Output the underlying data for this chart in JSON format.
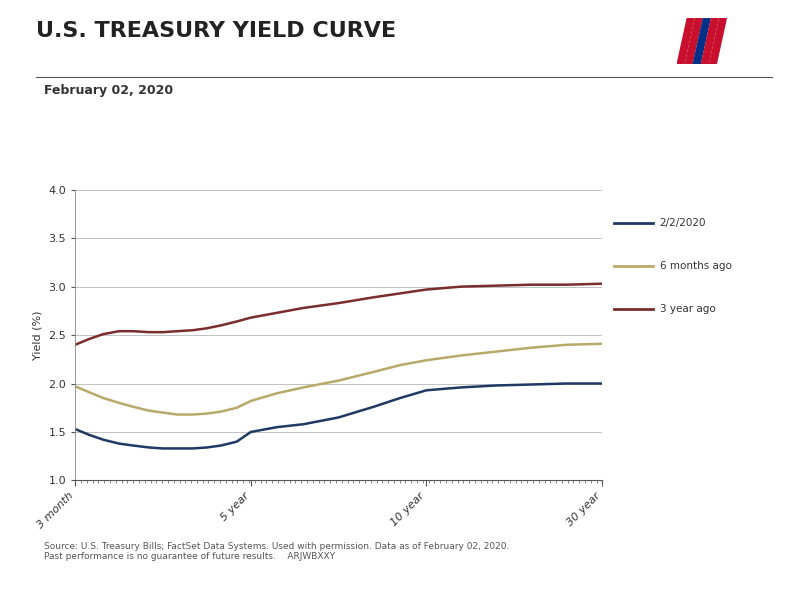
{
  "title": "U.S. TREASURY YIELD CURVE",
  "subtitle": "February 02, 2020",
  "ylabel": "Yield (%)",
  "source_line1": "Source: U.S. Treasury Bills; FactSet Data Systems. Used with permission. Data as of February 02, 2020.",
  "source_line2": "Past performance is no guarantee of future results.    ARJWBXXY",
  "ylim": [
    1.0,
    4.0
  ],
  "yticks": [
    1.0,
    1.5,
    2.0,
    2.5,
    3.0,
    3.5,
    4.0
  ],
  "xtick_labels": [
    "3 month",
    "5 year",
    "10 year",
    "30 year"
  ],
  "xtick_positions": [
    0,
    1.0,
    2.0,
    3.0
  ],
  "series": [
    {
      "label": "2/2/2020",
      "color": "#1f3864",
      "linewidth": 1.8,
      "x": [
        0,
        0.08,
        0.16,
        0.25,
        0.33,
        0.42,
        0.5,
        0.58,
        0.67,
        0.75,
        0.83,
        0.92,
        1.0,
        1.15,
        1.3,
        1.5,
        1.7,
        1.85,
        2.0,
        2.2,
        2.4,
        2.6,
        2.8,
        3.0
      ],
      "y": [
        1.53,
        1.47,
        1.42,
        1.38,
        1.36,
        1.34,
        1.33,
        1.33,
        1.33,
        1.34,
        1.36,
        1.4,
        1.5,
        1.55,
        1.58,
        1.65,
        1.76,
        1.85,
        1.93,
        1.96,
        1.98,
        1.99,
        2.0,
        2.0
      ]
    },
    {
      "label": "6 months ago",
      "color": "#b8a96a",
      "linewidth": 1.8,
      "x": [
        0,
        0.08,
        0.16,
        0.25,
        0.33,
        0.42,
        0.5,
        0.58,
        0.67,
        0.75,
        0.83,
        0.92,
        1.0,
        1.15,
        1.3,
        1.5,
        1.7,
        1.85,
        2.0,
        2.2,
        2.4,
        2.6,
        2.8,
        3.0
      ],
      "y": [
        1.97,
        1.91,
        1.85,
        1.8,
        1.76,
        1.72,
        1.7,
        1.68,
        1.68,
        1.69,
        1.71,
        1.75,
        1.82,
        1.9,
        1.96,
        2.03,
        2.12,
        2.19,
        2.24,
        2.29,
        2.33,
        2.37,
        2.4,
        2.41
      ]
    },
    {
      "label": "3 year ago",
      "color": "#7b2c2c",
      "linewidth": 1.8,
      "x": [
        0,
        0.08,
        0.16,
        0.25,
        0.33,
        0.42,
        0.5,
        0.58,
        0.67,
        0.75,
        0.83,
        0.92,
        1.0,
        1.15,
        1.3,
        1.5,
        1.7,
        1.85,
        2.0,
        2.2,
        2.4,
        2.6,
        2.8,
        3.0
      ],
      "y": [
        2.4,
        2.46,
        2.51,
        2.54,
        2.54,
        2.53,
        2.53,
        2.54,
        2.55,
        2.57,
        2.6,
        2.64,
        2.68,
        2.73,
        2.78,
        2.83,
        2.89,
        2.93,
        2.97,
        3.0,
        3.01,
        3.02,
        3.02,
        3.03
      ]
    }
  ],
  "background_color": "#ffffff",
  "grid_color": "#aaaaaa",
  "title_fontsize": 16,
  "subtitle_fontsize": 9,
  "axis_label_fontsize": 8,
  "tick_fontsize": 8,
  "legend_fontsize": 7.5,
  "source_fontsize": 6.5
}
